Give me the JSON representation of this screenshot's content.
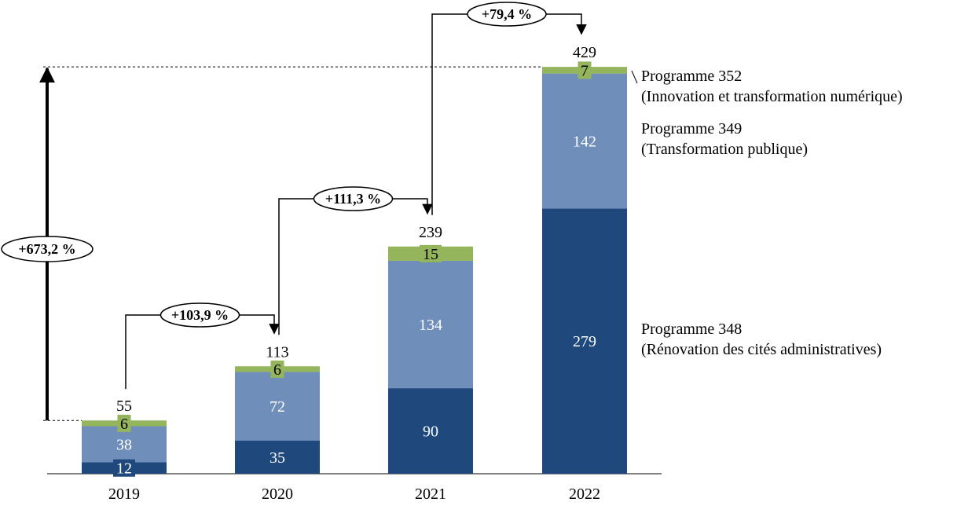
{
  "chart_data": {
    "type": "bar",
    "stacked": true,
    "categories": [
      "2019",
      "2020",
      "2021",
      "2022"
    ],
    "series": [
      {
        "name": "Programme 348\n(Rénovation des cités administratives)",
        "values": [
          12,
          35,
          90,
          279
        ],
        "color": "#1f497d"
      },
      {
        "name": "Programme 349\n(Transformation publique)",
        "values": [
          38,
          72,
          134,
          142
        ],
        "color": "#6f8fba"
      },
      {
        "name": "Programme 352\n(Innovation et transformation numérique)",
        "values": [
          6,
          6,
          15,
          7
        ],
        "color": "#94b55c"
      }
    ],
    "totals": [
      55,
      113,
      239,
      429
    ],
    "growth": [
      {
        "from": "2019",
        "to": "2020",
        "label": "+103,9 %"
      },
      {
        "from": "2020",
        "to": "2021",
        "label": "+111,3 %"
      },
      {
        "from": "2021",
        "to": "2022",
        "label": "+79,4 %"
      }
    ],
    "overall_growth": {
      "from": "2019",
      "to": "2022",
      "label": "+673,2 %"
    },
    "legend_placement": "right",
    "grid": false
  }
}
